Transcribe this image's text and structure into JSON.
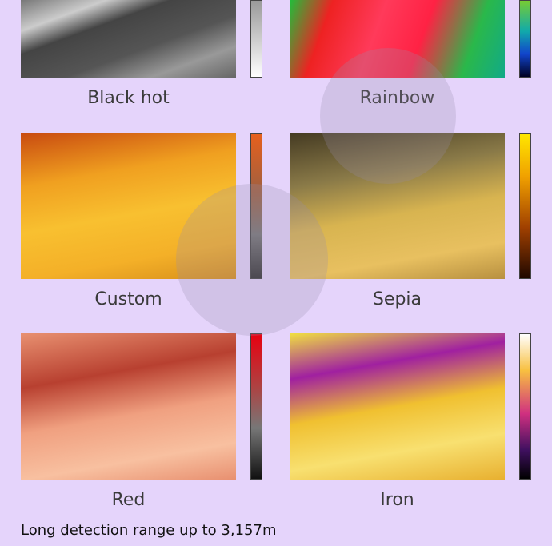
{
  "panels": [
    {
      "label": "Black hot"
    },
    {
      "label": "Rainbow"
    },
    {
      "label": "Custom"
    },
    {
      "label": "Sepia"
    },
    {
      "label": "Red"
    },
    {
      "label": "Iron"
    }
  ],
  "footer": "Long detection range up to 3,157m"
}
